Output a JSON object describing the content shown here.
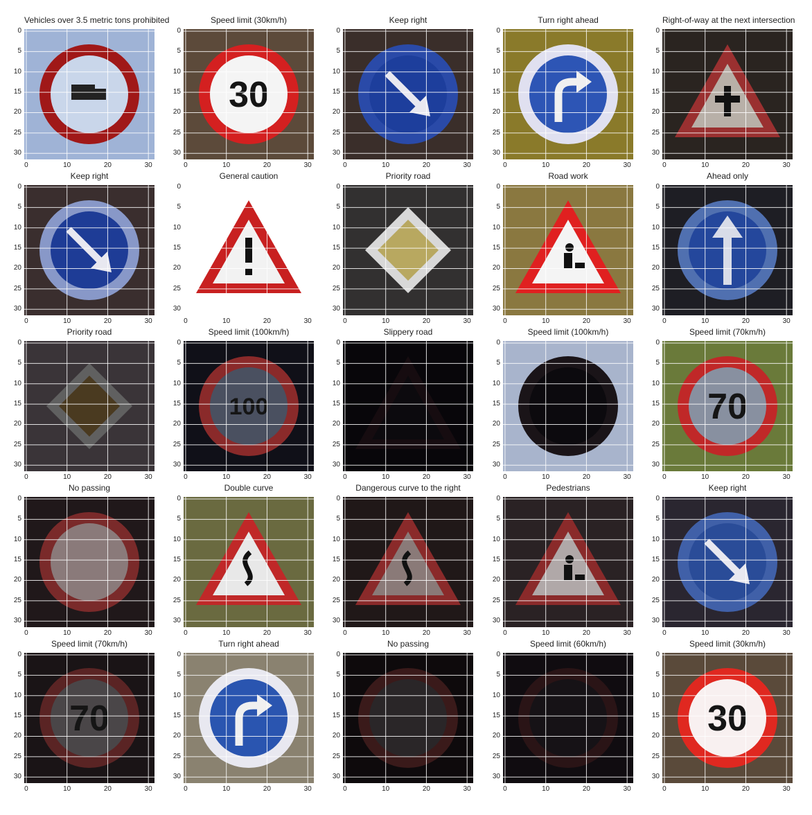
{
  "figure": {
    "x_ticks": [
      "0",
      "10",
      "20",
      "30"
    ],
    "y_ticks": [
      "0",
      "5",
      "10",
      "15",
      "20",
      "25",
      "30"
    ]
  },
  "panels": [
    {
      "title": "Vehicles over 3.5 metric tons prohibited",
      "sign": "vehicles-over-3-5t-prohibited-sign",
      "bg": "#9fb3d6",
      "shape": "circle",
      "ring": "#a01818",
      "fill": "#c9d6ea",
      "symbol": "truck"
    },
    {
      "title": "Speed limit (30km/h)",
      "sign": "speed-limit-30-sign",
      "bg": "#5c4a3a",
      "shape": "circle",
      "ring": "#d42020",
      "fill": "#f4f4f4",
      "symbol": "30"
    },
    {
      "title": "Keep right",
      "sign": "keep-right-sign",
      "bg": "#3a2e2a",
      "shape": "circle",
      "ring": "#2a4aa8",
      "fill": "#1d3e9c",
      "symbol": "arrow-down-right"
    },
    {
      "title": "Turn right ahead",
      "sign": "turn-right-ahead-sign",
      "bg": "#8a7a2a",
      "shape": "circle",
      "ring": "#e0e0f0",
      "fill": "#2d55b5",
      "symbol": "turn-right"
    },
    {
      "title": "Right-of-way at the next intersection",
      "sign": "right-of-way-sign",
      "bg": "#2a2420",
      "shape": "triangle",
      "ring": "#9a3030",
      "fill": "#b8b0a8",
      "symbol": "cross"
    },
    {
      "title": "Keep right",
      "sign": "keep-right-sign",
      "bg": "#3a2e2e",
      "shape": "circle",
      "ring": "#8898c8",
      "fill": "#1e3c96",
      "symbol": "arrow-down-right"
    },
    {
      "title": "General caution",
      "sign": "general-caution-sign",
      "bg": "#ffffff",
      "shape": "triangle",
      "ring": "#c82020",
      "fill": "#f2f2f2",
      "symbol": "exclamation"
    },
    {
      "title": "Priority road",
      "sign": "priority-road-sign",
      "bg": "#323030",
      "shape": "diamond",
      "ring": "#d8d8d8",
      "fill": "#b8a860",
      "symbol": "none"
    },
    {
      "title": "Road work",
      "sign": "road-work-sign",
      "bg": "#8a7840",
      "shape": "triangle",
      "ring": "#e02020",
      "fill": "#f4f4f4",
      "symbol": "worker"
    },
    {
      "title": "Ahead only",
      "sign": "ahead-only-sign",
      "bg": "#1e1e24",
      "shape": "circle",
      "ring": "#5070b0",
      "fill": "#24479c",
      "symbol": "arrow-up"
    },
    {
      "title": "Priority road",
      "sign": "priority-road-sign",
      "bg": "#3a3438",
      "shape": "diamond",
      "ring": "#606060",
      "fill": "#4a3a20",
      "symbol": "none"
    },
    {
      "title": "Speed limit (100km/h)",
      "sign": "speed-limit-100-sign",
      "bg": "#101018",
      "shape": "circle",
      "ring": "#8a2a2a",
      "fill": "#4a5060",
      "symbol": "100"
    },
    {
      "title": "Slippery road",
      "sign": "slippery-road-sign",
      "bg": "#08060a",
      "shape": "triangle",
      "ring": "#160c10",
      "fill": "#0c0a0e",
      "symbol": "none"
    },
    {
      "title": "Speed limit (100km/h)",
      "sign": "speed-limit-100-sign",
      "bg": "#a8b4cc",
      "shape": "circle",
      "ring": "#1a1418",
      "fill": "#0c0a0e",
      "symbol": "none"
    },
    {
      "title": "Speed limit (70km/h)",
      "sign": "speed-limit-70-sign",
      "bg": "#6a7a3a",
      "shape": "circle",
      "ring": "#c02828",
      "fill": "#8890a0",
      "symbol": "70"
    },
    {
      "title": "No passing",
      "sign": "no-passing-sign",
      "bg": "#20181a",
      "shape": "circle",
      "ring": "#7a2a2a",
      "fill": "#8a7a7a",
      "symbol": "none"
    },
    {
      "title": "Double curve",
      "sign": "double-curve-sign",
      "bg": "#6a6a40",
      "shape": "triangle",
      "ring": "#c02828",
      "fill": "#e8e8e8",
      "symbol": "curve"
    },
    {
      "title": "Dangerous curve to the right",
      "sign": "dangerous-curve-right-sign",
      "bg": "#201818",
      "shape": "triangle",
      "ring": "#8a2a2a",
      "fill": "#8a7a78",
      "symbol": "curve"
    },
    {
      "title": "Pedestrians",
      "sign": "pedestrians-sign",
      "bg": "#2a2224",
      "shape": "triangle",
      "ring": "#8a2a2a",
      "fill": "#b0a8a8",
      "symbol": "worker"
    },
    {
      "title": "Keep right",
      "sign": "keep-right-sign",
      "bg": "#2a2630",
      "shape": "circle",
      "ring": "#4060a8",
      "fill": "#2a4c98",
      "symbol": "arrow-down-right"
    },
    {
      "title": "Speed limit (70km/h)",
      "sign": "speed-limit-70-sign",
      "bg": "#1a1416",
      "shape": "circle",
      "ring": "#5a2424",
      "fill": "#4a4648",
      "symbol": "70"
    },
    {
      "title": "Turn right ahead",
      "sign": "turn-right-ahead-sign",
      "bg": "#8a8270",
      "shape": "circle",
      "ring": "#e8e8f0",
      "fill": "#2a55b0",
      "symbol": "turn-right"
    },
    {
      "title": "No passing",
      "sign": "no-passing-sign",
      "bg": "#0e0a0c",
      "shape": "circle",
      "ring": "#3a1a1a",
      "fill": "#2a2628",
      "symbol": "none"
    },
    {
      "title": "Speed limit (60km/h)",
      "sign": "speed-limit-60-sign",
      "bg": "#100c10",
      "shape": "circle",
      "ring": "#2a1416",
      "fill": "#161216",
      "symbol": "none"
    },
    {
      "title": "Speed limit (30km/h)",
      "sign": "speed-limit-30-sign",
      "bg": "#5a4a3a",
      "shape": "circle",
      "ring": "#e02820",
      "fill": "#f8f0f0",
      "symbol": "30"
    }
  ]
}
